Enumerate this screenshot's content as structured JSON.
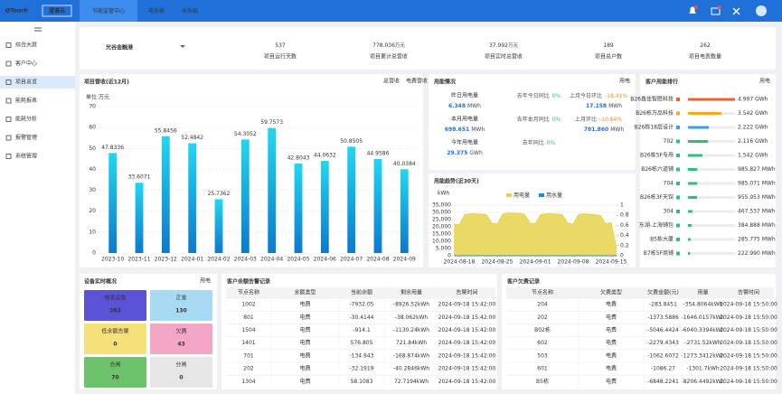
{
  "header": {
    "logo": "QTouch",
    "logo_cn": "望遇云",
    "tabs": [
      "节能监管中心",
      "电系统",
      "水系统"
    ],
    "active_tab": 0
  },
  "sidebar": {
    "items": [
      "综合大屏",
      "客户中心",
      "项目总览",
      "能耗报表",
      "能耗分析",
      "报警管理",
      "系统管理"
    ],
    "active": 2
  },
  "summary": {
    "project_name": "光谷金融港",
    "stats": [
      {
        "value": "537",
        "label": "项目运行天数"
      },
      {
        "value": "778.036",
        "unit": "万元",
        "label": "项目累计总营收"
      },
      {
        "value": "37.992",
        "unit": "万元",
        "label": "项目实时总营收"
      },
      {
        "value": "189",
        "label": "项目总户数"
      },
      {
        "value": "262",
        "label": "项目电表数量"
      }
    ]
  },
  "usage": {
    "title": "用能情况",
    "tag": "用电",
    "rows": [
      [
        {
          "label": "昨日用电量",
          "value": "6.348",
          "unit": "MWh"
        },
        {
          "label": "去年今日同比",
          "value": "0%"
        },
        {
          "label": "上月今日环比",
          "value": "-18.41%",
          "sub_value": "17.158",
          "sub_unit": "MWh"
        }
      ],
      [
        {
          "label": "本月用电量",
          "value": "698.651",
          "unit": "MWh"
        },
        {
          "label": "去年本月同比",
          "value": "0%"
        },
        {
          "label": "上月环比",
          "value": "-10.64%",
          "sub_value": "781.860",
          "sub_unit": "MWh"
        }
      ],
      [
        {
          "label": "今年用电量",
          "value": "29.375",
          "unit": "GWh"
        },
        {
          "label": "去年同比",
          "value": "0%"
        }
      ]
    ]
  },
  "device": {
    "title": "设备实时概况",
    "tag": "用电",
    "tiles": [
      {
        "label": "电表总数",
        "value": "262",
        "color": "#5b53d6",
        "text_color": "#ffffff"
      },
      {
        "label": "正常",
        "value": "130",
        "color": "#a8daf3",
        "text_color": "#222222"
      },
      {
        "label": "低余额告警",
        "value": "0",
        "color": "#f6e07a",
        "text_color": "#222222"
      },
      {
        "label": "欠费",
        "value": "43",
        "color": "#f4a6c6",
        "text_color": "#222222"
      },
      {
        "label": "合闸",
        "value": "70",
        "color": "#6cc36c",
        "text_color": "#222222"
      },
      {
        "label": "分闸",
        "value": "0",
        "color": "#e6e6e6",
        "text_color": "#222222"
      }
    ]
  },
  "balance_table": {
    "title": "客户余额告警记录",
    "headers": [
      "节点名称",
      "余额类型",
      "当前余额",
      "剩余用量",
      "告警时间"
    ],
    "rows": [
      [
        "1002",
        "电费",
        "-7932.05",
        "-8926.52kWh",
        "2024-09-18 15:42:00"
      ],
      [
        "801",
        "电费",
        "-30.4144",
        "-38.062kWh",
        "2024-09-18 15:42:00"
      ],
      [
        "1504",
        "电费",
        "-914.1",
        "-1130.24kWh",
        "2024-09-18 15:42:00"
      ],
      [
        "1401",
        "电费",
        "576.805",
        "721.84kWh",
        "2024-09-18 15:42:00"
      ],
      [
        "701",
        "电费",
        "-134.943",
        "-168.874kWh",
        "2024-09-18 15:42:00"
      ],
      [
        "202",
        "电费",
        "-32.1919",
        "-40.2846kWh",
        "2024-09-18 15:42:00"
      ],
      [
        "1304",
        "电费",
        "58.1083",
        "72.7194kWh",
        "2024-09-18 15:42:00"
      ]
    ]
  },
  "arrears_table": {
    "title": "客户欠费记录",
    "headers": [
      "节点名称",
      "欠费类型",
      "欠费金额(元)",
      "用量",
      "告警时间"
    ],
    "rows": [
      [
        "204",
        "电费",
        "-283.8451",
        "-354.8064kWh",
        "2024-09-18 15:50:00"
      ],
      [
        "202",
        "电费",
        "-1373.5886",
        "-1646.0157kWh",
        "2024-09-18 15:50:00"
      ],
      [
        "B02栋",
        "电费",
        "-5046.4424",
        "-6040.3394kWh",
        "2024-09-18 15:50:00"
      ],
      [
        "602",
        "电费",
        "-2279.4343",
        "-2731.52kWh",
        "2024-09-18 15:50:00"
      ],
      [
        "503",
        "电费",
        "-1062.6072",
        "-1273.3412kWh",
        "2024-09-18 15:50:00"
      ],
      [
        "601",
        "电费",
        "-1086.27",
        "-1301.7kWh",
        "2024-09-18 15:50:00"
      ],
      [
        "B5栋",
        "电费",
        "-6848.2241",
        "-8206.4492kWh",
        "2024-09-18 15:50:00"
      ]
    ]
  },
  "chart_data": [
    {
      "type": "bar",
      "title": "项目营收(近12月)",
      "toggles": [
        "总营收",
        "电费营收"
      ],
      "y_label": "单位:万元",
      "categories": [
        "2023-10",
        "2023-11",
        "2023-12",
        "2024-01",
        "2024-02",
        "2024-03",
        "2024-04",
        "2024-05",
        "2024-06",
        "2024-07",
        "2024-08",
        "2024-09"
      ],
      "values": [
        47.8336,
        33.6071,
        55.8456,
        52.4842,
        25.7362,
        54.3052,
        59.7573,
        42.8043,
        44.0632,
        50.8505,
        44.9586,
        40.0384
      ],
      "colors": [
        "#1fd8f2",
        "#0b79cf"
      ],
      "label_color": "#1a9ae0",
      "ylim": [
        0,
        70
      ],
      "yticks": [
        0,
        10,
        20,
        30,
        40,
        50,
        60,
        70
      ],
      "grid": true
    },
    {
      "type": "area",
      "title": "用能趋势(近30天)",
      "y_label": "kWh",
      "x": [
        "2024-08-17",
        "2024-08-18",
        "2024-08-19",
        "2024-08-20",
        "2024-08-21",
        "2024-08-22",
        "2024-08-23",
        "2024-08-24",
        "2024-08-25",
        "2024-08-26",
        "2024-08-27",
        "2024-08-28",
        "2024-08-29",
        "2024-08-30",
        "2024-08-31",
        "2024-09-01",
        "2024-09-02",
        "2024-09-03",
        "2024-09-04",
        "2024-09-05",
        "2024-09-06",
        "2024-09-07",
        "2024-09-08",
        "2024-09-09",
        "2024-09-10",
        "2024-09-11",
        "2024-09-12",
        "2024-09-13",
        "2024-09-14",
        "2024-09-15",
        "2024-09-16"
      ],
      "series": [
        {
          "name": "用电量",
          "color": "#e6d24a",
          "values": [
            22000,
            21500,
            28500,
            29000,
            29000,
            28800,
            28500,
            22500,
            22000,
            28800,
            29500,
            29500,
            29200,
            28800,
            22800,
            22000,
            28500,
            29000,
            29200,
            28800,
            28500,
            22500,
            21800,
            28600,
            29000,
            28800,
            28500,
            28000,
            22000,
            23000,
            5000
          ]
        },
        {
          "name": "用水量",
          "color": "#2a86d6",
          "axis": "y2",
          "values": [
            0,
            0,
            0,
            0,
            0,
            0,
            0,
            0,
            0,
            0,
            0,
            0,
            0,
            0,
            0,
            0,
            0,
            0,
            0,
            0,
            0,
            0,
            0,
            0,
            0,
            0,
            0,
            0,
            0,
            0,
            0
          ]
        }
      ],
      "xticks": [
        "2024-08-18",
        "2024-08-25",
        "2024-09-01",
        "2024-09-08",
        "2024-09-15"
      ],
      "ylim": [
        0,
        35000
      ],
      "yticks": [
        0,
        {
          "value": 5000,
          "label": "5,000"
        },
        {
          "value": 10000,
          "label": "10,000"
        },
        {
          "value": 15000,
          "label": "15,000"
        },
        {
          "value": 20000,
          "label": "20,000"
        },
        {
          "value": 25000,
          "label": "25,000"
        },
        {
          "value": 30000,
          "label": "30,000"
        },
        {
          "value": 35000,
          "label": "35,000"
        }
      ],
      "y2lim": [
        0,
        1
      ],
      "y2ticks": [
        0,
        0.2,
        0.4,
        0.6,
        0.8,
        1
      ],
      "grid": true,
      "legend": "top"
    },
    {
      "type": "hbar",
      "title": "客户用能排行",
      "tag": "用电",
      "categories": [
        "B26鑫佳智胜科技",
        "B26栋万品科技",
        "B26栋18层设计",
        "702",
        "B26栋5F专用",
        "B26栋六道铺",
        "704",
        "B26栋3F天馆",
        "304",
        "东湖-上海铺包",
        "B5栋大厦",
        "B7栋5F商铺"
      ],
      "values": [
        4997,
        3542,
        2222,
        2116,
        1542,
        985.827,
        985.071,
        955.953,
        467.537,
        384.888,
        285.775,
        222.99
      ],
      "value_labels": [
        "4.997 GWh",
        "3.542 GWh",
        "2.222 GWh",
        "2.116 GWh",
        "1.542 GWh",
        "985.827 MWh",
        "985.071 MWh",
        "955.953 MWh",
        "467.537 MWh",
        "384.888 MWh",
        "285.775 MWh",
        "222.990 MWh"
      ],
      "colors": [
        "#f0612a",
        "#f5a623",
        "#3a9ff0",
        "#2ebf7a",
        "#2ebf7a",
        "#2ebf7a",
        "#2ebf7a",
        "#2ebf7a",
        "#2ebf7a",
        "#2ebf7a",
        "#2ebf7a",
        "#2ebf7a"
      ]
    }
  ]
}
